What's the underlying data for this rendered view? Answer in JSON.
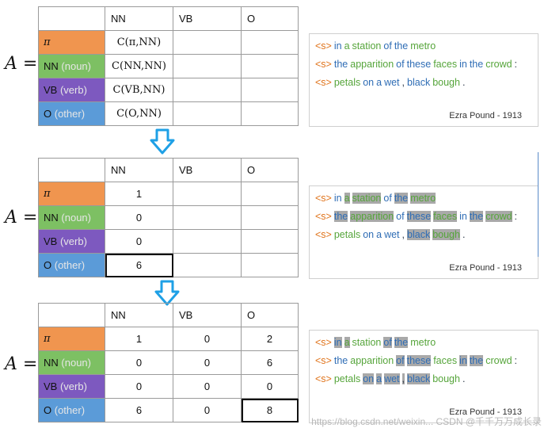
{
  "matrix_symbol": "A =",
  "columns": [
    "NN",
    "VB",
    "O"
  ],
  "row_labels": [
    {
      "main": "π",
      "sub": ""
    },
    {
      "main": "NN",
      "sub": "(noun)"
    },
    {
      "main": "VB",
      "sub": "(verb)"
    },
    {
      "main": "O",
      "sub": "(other)"
    }
  ],
  "panel1_nn_col": [
    "C(π,NN)",
    "C(NN,NN)",
    "C(VB,NN)",
    "C(O,NN)"
  ],
  "panel2_nn_col": [
    "1",
    "0",
    "0",
    "6"
  ],
  "panel3_values": [
    [
      "1",
      "0",
      "2"
    ],
    [
      "0",
      "0",
      "6"
    ],
    [
      "0",
      "0",
      "0"
    ],
    [
      "6",
      "0",
      "8"
    ]
  ],
  "text_lines": [
    {
      "tokens": [
        {
          "t": "<s>",
          "c": "s"
        },
        {
          "t": "in",
          "c": "b"
        },
        {
          "t": "a",
          "c": "g"
        },
        {
          "t": "station",
          "c": "g"
        },
        {
          "t": "of",
          "c": "b"
        },
        {
          "t": "the",
          "c": "b"
        },
        {
          "t": "metro",
          "c": "g"
        }
      ]
    },
    {
      "tokens": [
        {
          "t": "<s>",
          "c": "s"
        },
        {
          "t": "the",
          "c": "b"
        },
        {
          "t": "apparition",
          "c": "g"
        },
        {
          "t": "of",
          "c": "b"
        },
        {
          "t": "these",
          "c": "b"
        },
        {
          "t": "faces",
          "c": "g"
        },
        {
          "t": "in",
          "c": "b"
        },
        {
          "t": "the",
          "c": "b"
        },
        {
          "t": "crowd",
          "c": "g"
        },
        {
          "t": ":",
          "c": "k"
        }
      ]
    },
    {
      "tokens": [
        {
          "t": "<s>",
          "c": "s"
        },
        {
          "t": "petals",
          "c": "g"
        },
        {
          "t": "on",
          "c": "b"
        },
        {
          "t": "a",
          "c": "b"
        },
        {
          "t": "wet",
          "c": "b"
        },
        {
          "t": ",",
          "c": "k"
        },
        {
          "t": "black",
          "c": "b"
        },
        {
          "t": "bough",
          "c": "g"
        },
        {
          "t": ".",
          "c": "k"
        }
      ]
    }
  ],
  "attribution": "Ezra Pound - 1913",
  "watermark": "https://blog.csdn.net/weixin... CSDN @千千万万成长录",
  "colors": {
    "pi": "#f0954f",
    "noun": "#7dc063",
    "verb": "#7d59bf",
    "other": "#5b9bd8",
    "arrow": "#1ea0e6"
  }
}
